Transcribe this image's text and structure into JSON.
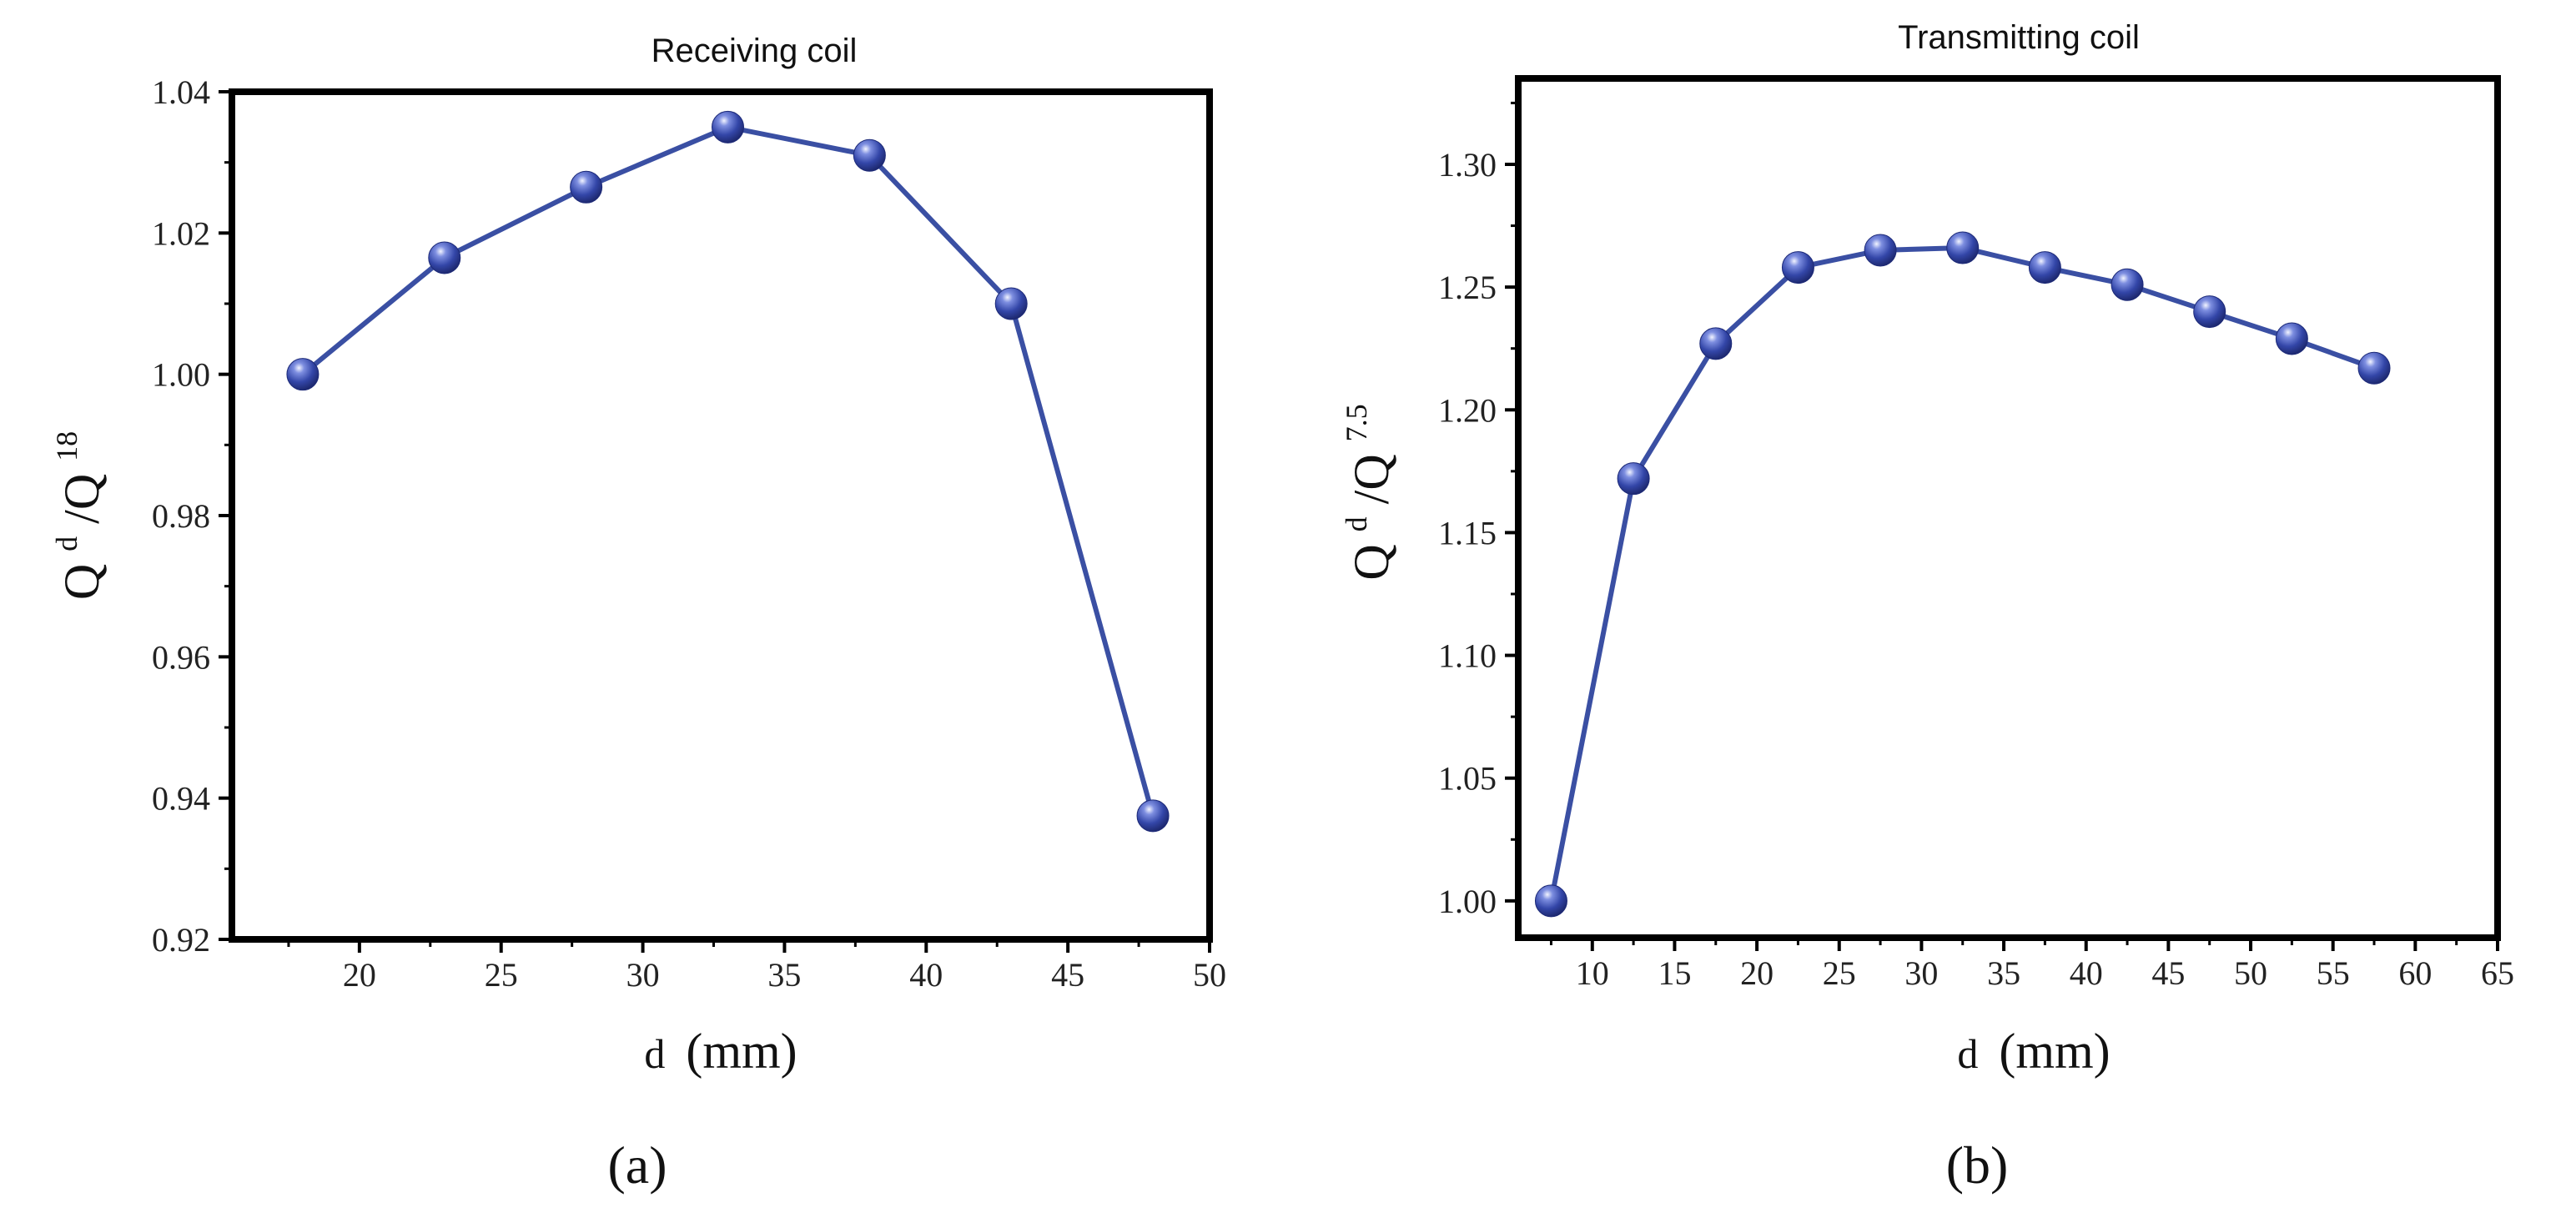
{
  "chart_data": [
    {
      "type": "line",
      "title": "Receiving coil",
      "xlabel_var": "d",
      "xlabel_unit": "(mm)",
      "ylabel_base": "Q",
      "ylabel_sup_num": "d",
      "ylabel_sep": "/Q",
      "ylabel_sup_den": "18",
      "panel_label": "(a)",
      "xlim": [
        15.5,
        50
      ],
      "ylim": [
        0.92,
        1.04
      ],
      "xticks": [
        20,
        25,
        30,
        35,
        40,
        45,
        50
      ],
      "xtick_labels": [
        "20",
        "25",
        "30",
        "35",
        "40",
        "45",
        "50"
      ],
      "yticks": [
        0.92,
        0.94,
        0.96,
        0.98,
        1.0,
        1.02,
        1.04
      ],
      "ytick_labels": [
        "0.92",
        "0.94",
        "0.96",
        "0.98",
        "1.00",
        "1.02",
        "1.04"
      ],
      "x": [
        18,
        23,
        28,
        33,
        38,
        43,
        48
      ],
      "values": [
        1.0,
        1.0165,
        1.0265,
        1.035,
        1.031,
        1.01,
        0.9375
      ]
    },
    {
      "type": "line",
      "title": "Transmitting coil",
      "xlabel_var": "d",
      "xlabel_unit": "(mm)",
      "ylabel_base": "Q",
      "ylabel_sup_num": "d",
      "ylabel_sep": "/Q",
      "ylabel_sup_den": "7.5",
      "panel_label": "(b)",
      "xlim": [
        5.5,
        65
      ],
      "ylim": [
        0.985,
        1.335
      ],
      "xticks": [
        10,
        15,
        20,
        25,
        30,
        35,
        40,
        45,
        50,
        55,
        60,
        65
      ],
      "xtick_labels": [
        "10",
        "15",
        "20",
        "25",
        "30",
        "35",
        "40",
        "45",
        "50",
        "55",
        "60",
        "65"
      ],
      "yticks": [
        1.0,
        1.05,
        1.1,
        1.15,
        1.2,
        1.25,
        1.3
      ],
      "ytick_labels": [
        "1.00",
        "1.05",
        "1.10",
        "1.15",
        "1.20",
        "1.25",
        "1.30"
      ],
      "x": [
        7.5,
        12.5,
        17.5,
        22.5,
        27.5,
        32.5,
        37.5,
        42.5,
        47.5,
        52.5,
        57.5
      ],
      "values": [
        1.0,
        1.172,
        1.227,
        1.258,
        1.265,
        1.266,
        1.258,
        1.251,
        1.24,
        1.229,
        1.217
      ]
    }
  ],
  "colors": {
    "series": "#3a4fa3",
    "marker_dark": "#1d2a78",
    "marker_mid": "#4a5fc0",
    "marker_light": "#e8ecff"
  }
}
